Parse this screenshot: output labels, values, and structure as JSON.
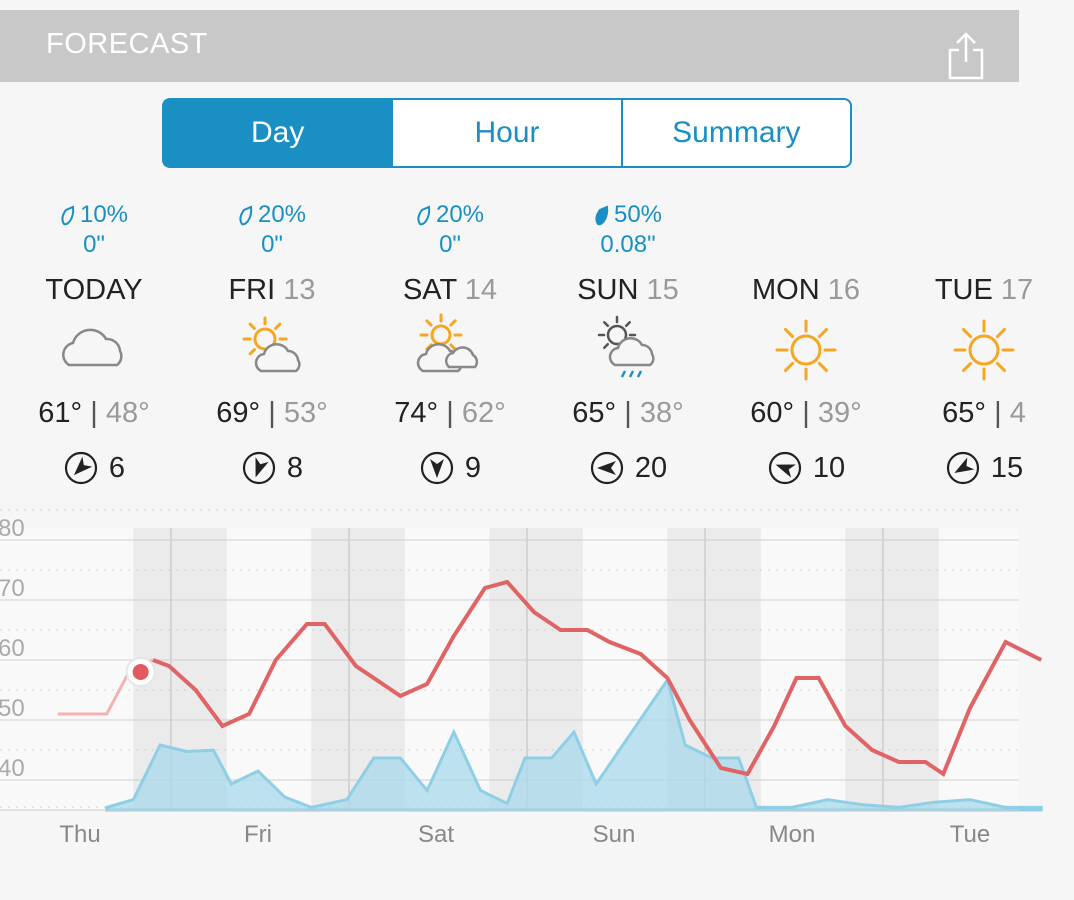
{
  "header": {
    "title": "FORECAST",
    "share_icon": "share-icon"
  },
  "tabs": [
    {
      "label": "Day",
      "active": true
    },
    {
      "label": "Hour",
      "active": false
    },
    {
      "label": "Summary",
      "active": false
    }
  ],
  "days": [
    {
      "precip_pct": "10%",
      "precip_amt": "0\"",
      "name": "TODAY",
      "num": "",
      "icon": "cloudy-icon",
      "hi": "61°",
      "lo": "48°",
      "wind": "6",
      "wind_dir_deg": 225
    },
    {
      "precip_pct": "20%",
      "precip_amt": "0\"",
      "name": "FRI",
      "num": "13",
      "icon": "partly-cloudy-icon",
      "hi": "69°",
      "lo": "53°",
      "wind": "8",
      "wind_dir_deg": 200
    },
    {
      "precip_pct": "20%",
      "precip_amt": "0\"",
      "name": "SAT",
      "num": "14",
      "icon": "mostly-cloudy-icon",
      "hi": "74°",
      "lo": "62°",
      "wind": "9",
      "wind_dir_deg": 180
    },
    {
      "precip_pct": "50%",
      "precip_amt": "0.08\"",
      "name": "SUN",
      "num": "15",
      "icon": "rain-showers-icon",
      "hi": "65°",
      "lo": "38°",
      "wind": "20",
      "wind_dir_deg": 270
    },
    {
      "precip_pct": "",
      "precip_amt": "",
      "name": "MON",
      "num": "16",
      "icon": "sunny-icon",
      "hi": "60°",
      "lo": "39°",
      "wind": "10",
      "wind_dir_deg": 290
    },
    {
      "precip_pct": "",
      "precip_amt": "",
      "name": "TUE",
      "num": "17",
      "icon": "sunny-icon",
      "hi": "65°",
      "lo": "4",
      "wind": "15",
      "wind_dir_deg": 240
    }
  ],
  "colors": {
    "accent": "#1a8fc3",
    "temp_line": "#e06466",
    "precip_fill": "#a8d8ea",
    "sun": "#f5a623"
  },
  "chart_data": {
    "type": "line",
    "x_labels": [
      "Thu",
      "Fri",
      "Sat",
      "Sun",
      "Mon",
      "Tue"
    ],
    "y_ticks": [
      "80",
      "70",
      "60",
      "50",
      "40"
    ],
    "ylim": [
      35,
      82
    ],
    "series": [
      {
        "values": [
          [
            -0.25,
            51
          ],
          [
            0.3,
            51
          ],
          [
            0.55,
            58
          ],
          [
            0.82,
            60
          ],
          [
            1.0,
            59
          ],
          [
            1.3,
            55
          ],
          [
            1.6,
            49
          ],
          [
            1.9,
            51
          ],
          [
            2.2,
            60
          ],
          [
            2.55,
            66
          ],
          [
            2.75,
            66
          ],
          [
            3.1,
            59
          ],
          [
            3.4,
            56
          ],
          [
            3.6,
            54
          ],
          [
            3.9,
            56
          ],
          [
            4.2,
            64
          ],
          [
            4.55,
            72
          ],
          [
            4.8,
            73
          ],
          [
            5.1,
            68
          ],
          [
            5.4,
            65
          ],
          [
            5.7,
            65
          ],
          [
            5.95,
            63
          ],
          [
            6.3,
            61
          ],
          [
            6.6,
            57
          ],
          [
            6.85,
            50
          ],
          [
            7.2,
            42
          ],
          [
            7.5,
            41
          ],
          [
            7.8,
            49
          ],
          [
            8.05,
            57
          ],
          [
            8.3,
            57
          ],
          [
            8.6,
            49
          ],
          [
            8.9,
            45
          ],
          [
            9.2,
            43
          ],
          [
            9.5,
            43
          ],
          [
            9.7,
            41
          ],
          [
            10.0,
            52
          ],
          [
            10.4,
            63
          ],
          [
            10.8,
            60
          ]
        ]
      },
      {
        "values": [
          [
            0.3,
            0.02
          ],
          [
            0.6,
            0.08
          ],
          [
            0.9,
            0.5
          ],
          [
            1.2,
            0.45
          ],
          [
            1.5,
            0.46
          ],
          [
            1.7,
            0.2
          ],
          [
            2.0,
            0.3
          ],
          [
            2.3,
            0.1
          ],
          [
            2.6,
            0.02
          ],
          [
            3.0,
            0.08
          ],
          [
            3.3,
            0.4
          ],
          [
            3.6,
            0.4
          ],
          [
            3.9,
            0.15
          ],
          [
            4.2,
            0.6
          ],
          [
            4.5,
            0.15
          ],
          [
            4.8,
            0.05
          ],
          [
            5.0,
            0.4
          ],
          [
            5.3,
            0.4
          ],
          [
            5.55,
            0.6
          ],
          [
            5.8,
            0.2
          ],
          [
            6.1,
            0.5
          ],
          [
            6.4,
            0.8
          ],
          [
            6.6,
            1.0
          ],
          [
            6.8,
            0.5
          ],
          [
            7.1,
            0.4
          ],
          [
            7.4,
            0.4
          ],
          [
            7.6,
            0.02
          ],
          [
            8.0,
            0.02
          ],
          [
            8.4,
            0.08
          ],
          [
            8.8,
            0.04
          ],
          [
            9.2,
            0.02
          ],
          [
            9.6,
            0.06
          ],
          [
            10.0,
            0.08
          ],
          [
            10.4,
            0.02
          ],
          [
            10.8,
            0.02
          ]
        ]
      }
    ],
    "current_point": [
      0.85,
      58
    ]
  }
}
